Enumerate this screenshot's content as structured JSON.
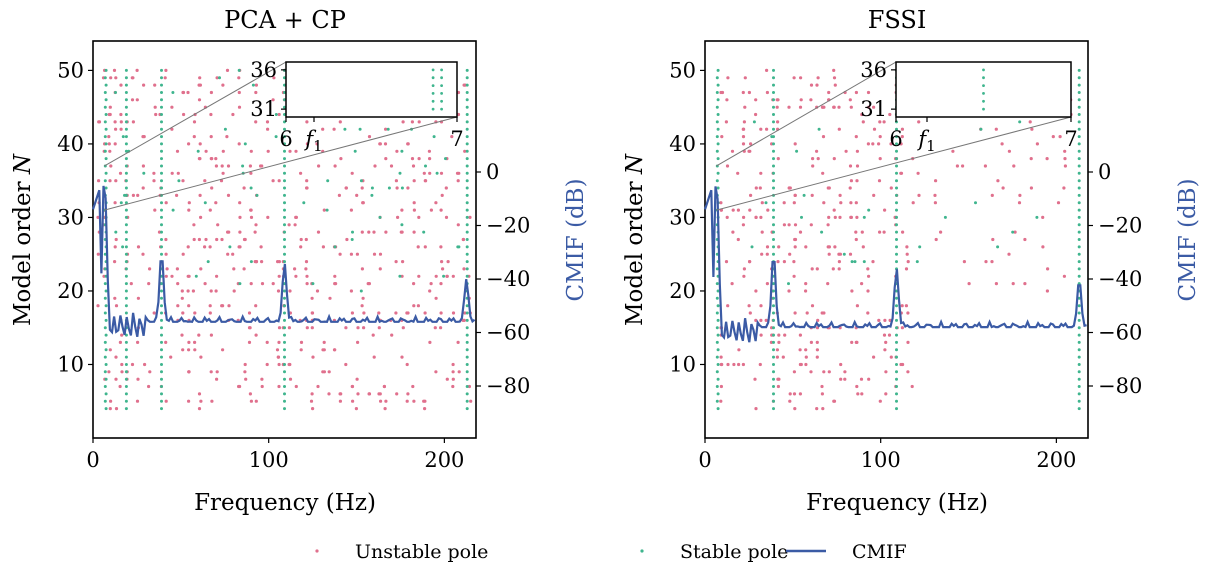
{
  "legend": {
    "unstable": "Unstable pole",
    "stable": "Stable pole",
    "cmif": "CMIF"
  },
  "colors": {
    "unstable": "#e0708d",
    "stable": "#3fb58e",
    "cmif": "#3b5ba5"
  },
  "chart_data": [
    {
      "type": "scatter",
      "title": "PCA + CP",
      "xlabel": "Frequency (Hz)",
      "ylabel": "Model order N",
      "y2label": "CMIF (dB)",
      "xlim": [
        0,
        218
      ],
      "ylim": [
        0,
        54
      ],
      "y2lim": [
        -100,
        0
      ],
      "xticks": [
        "0",
        "100",
        "200"
      ],
      "yticks": [
        "10",
        "20",
        "30",
        "40",
        "50"
      ],
      "y2ticks": [
        "0",
        "−20",
        "−40",
        "−60",
        "−80"
      ],
      "stable_columns_hz": [
        7,
        19,
        39,
        109,
        213
      ],
      "unstable_density": "high",
      "cmif_peaks": [
        {
          "x": 6.5,
          "y": 0
        },
        {
          "x": 39,
          "y": -30
        },
        {
          "x": 109,
          "y": -34
        },
        {
          "x": 212.5,
          "y": -40
        }
      ],
      "cmif_floor": -56,
      "inset": {
        "xlim": [
          6,
          7
        ],
        "ylim": [
          30,
          37
        ],
        "yticks": [
          "36",
          "31"
        ],
        "xticks": [
          "6",
          "f1",
          "7"
        ],
        "stable_columns": [
          6.86,
          6.91
        ]
      }
    },
    {
      "type": "scatter",
      "title": "FSSI",
      "xlabel": "Frequency (Hz)",
      "ylabel": "Model order N",
      "y2label": "CMIF (dB)",
      "xlim": [
        0,
        218
      ],
      "ylim": [
        0,
        54
      ],
      "y2lim": [
        -100,
        0
      ],
      "xticks": [
        "0",
        "100",
        "200"
      ],
      "yticks": [
        "10",
        "20",
        "30",
        "40",
        "50"
      ],
      "y2ticks": [
        "0",
        "−20",
        "−40",
        "−60",
        "−80"
      ],
      "stable_columns_hz": [
        7,
        39,
        109,
        213
      ],
      "unstable_density": "medium",
      "cmif_peaks": [
        {
          "x": 6.5,
          "y": 0
        },
        {
          "x": 39,
          "y": -30
        },
        {
          "x": 109,
          "y": -36
        },
        {
          "x": 213,
          "y": -40
        }
      ],
      "cmif_floor": -58,
      "inset": {
        "xlim": [
          6,
          7
        ],
        "ylim": [
          30,
          37
        ],
        "yticks": [
          "36",
          "31"
        ],
        "xticks": [
          "6",
          "f1",
          "7"
        ],
        "stable_columns": [
          6.5
        ]
      }
    }
  ]
}
